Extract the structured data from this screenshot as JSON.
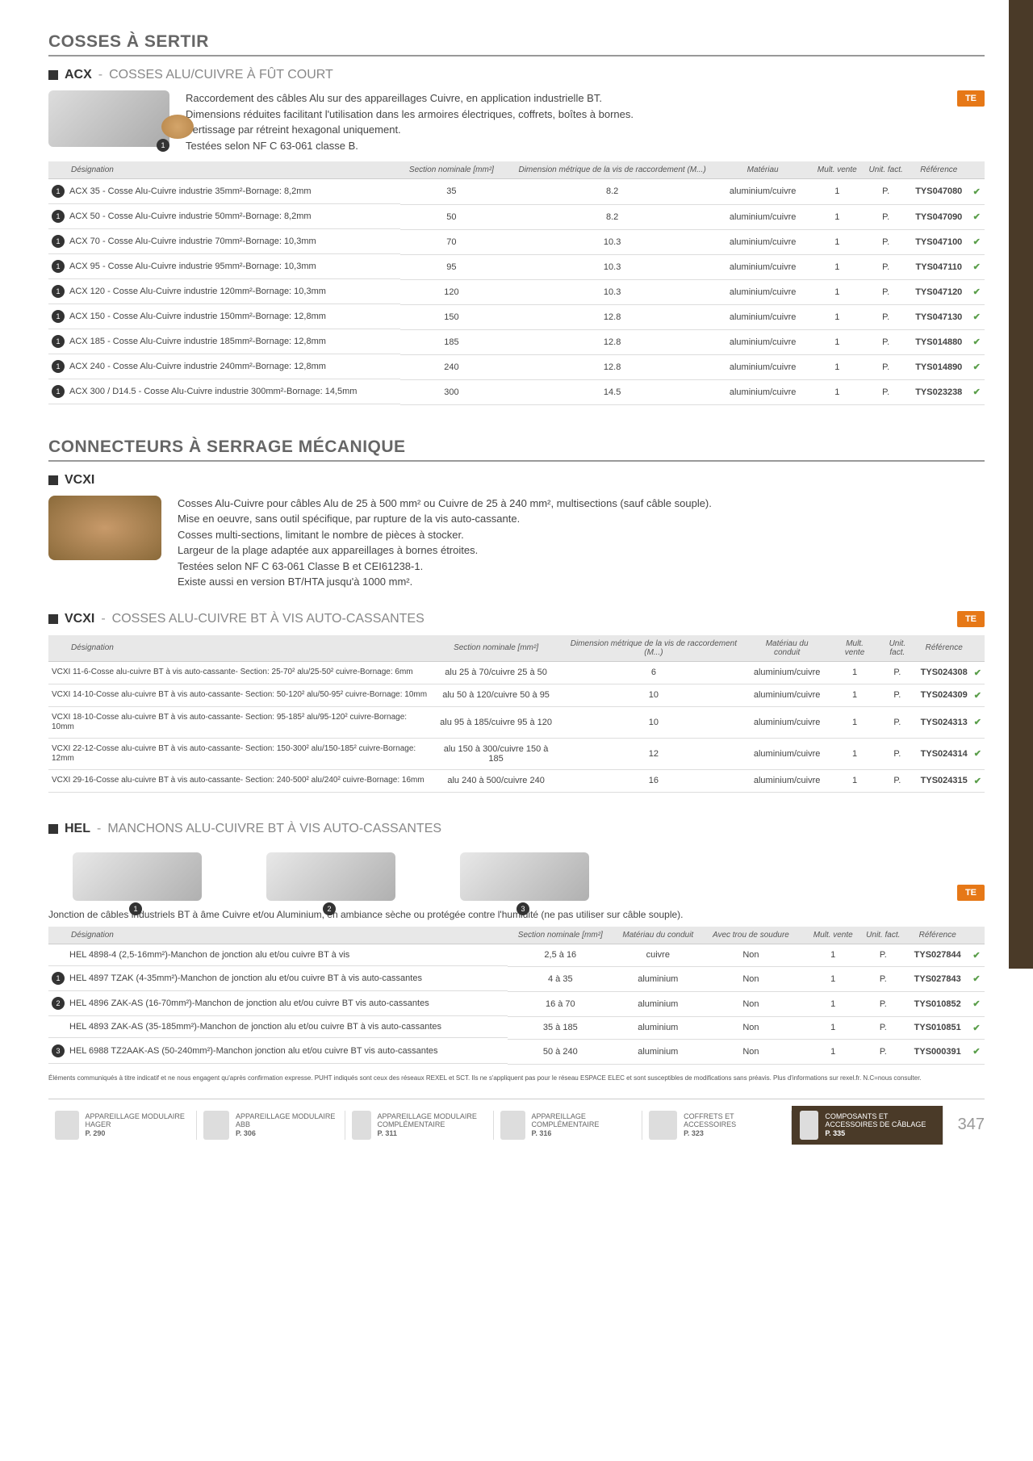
{
  "page_number": "347",
  "section1": {
    "category": "COSSES À SERTIR",
    "code": "ACX",
    "title": "COSSES ALU/CUIVRE À FÛT COURT",
    "desc": "Raccordement des câbles Alu sur des appareillages Cuivre, en application industrielle BT.\nDimensions réduites facilitant l'utilisation dans les armoires électriques, coffrets, boîtes à bornes.\nSertissage par rétreint hexagonal uniquement.\nTestées selon NF C 63-061 classe B.",
    "brand": "TE",
    "headers": [
      "Désignation",
      "Section nominale [mm²]",
      "Dimension métrique de la vis de raccordement (M...)",
      "Matériau",
      "",
      "Mult. vente",
      "Unit. fact.",
      "Référence",
      ""
    ],
    "rows": [
      {
        "badge": "1",
        "d": "ACX 35 - Cosse Alu-Cuivre industrie 35mm²-Bornage: 8,2mm",
        "s": "35",
        "v": "8.2",
        "m": "aluminium/cuivre",
        "mv": "1",
        "u": "P.",
        "r": "TYS047080"
      },
      {
        "badge": "1",
        "d": "ACX 50 - Cosse Alu-Cuivre industrie 50mm²-Bornage: 8,2mm",
        "s": "50",
        "v": "8.2",
        "m": "aluminium/cuivre",
        "mv": "1",
        "u": "P.",
        "r": "TYS047090"
      },
      {
        "badge": "1",
        "d": "ACX 70 - Cosse Alu-Cuivre industrie 70mm²-Bornage: 10,3mm",
        "s": "70",
        "v": "10.3",
        "m": "aluminium/cuivre",
        "mv": "1",
        "u": "P.",
        "r": "TYS047100"
      },
      {
        "badge": "1",
        "d": "ACX 95 - Cosse Alu-Cuivre industrie 95mm²-Bornage: 10,3mm",
        "s": "95",
        "v": "10.3",
        "m": "aluminium/cuivre",
        "mv": "1",
        "u": "P.",
        "r": "TYS047110"
      },
      {
        "badge": "1",
        "d": "ACX 120 - Cosse Alu-Cuivre industrie 120mm²-Bornage: 10,3mm",
        "s": "120",
        "v": "10.3",
        "m": "aluminium/cuivre",
        "mv": "1",
        "u": "P.",
        "r": "TYS047120"
      },
      {
        "badge": "1",
        "d": "ACX 150 - Cosse Alu-Cuivre industrie 150mm²-Bornage: 12,8mm",
        "s": "150",
        "v": "12.8",
        "m": "aluminium/cuivre",
        "mv": "1",
        "u": "P.",
        "r": "TYS047130"
      },
      {
        "badge": "1",
        "d": "ACX 185 - Cosse Alu-Cuivre industrie 185mm²-Bornage: 12,8mm",
        "s": "185",
        "v": "12.8",
        "m": "aluminium/cuivre",
        "mv": "1",
        "u": "P.",
        "r": "TYS014880"
      },
      {
        "badge": "1",
        "d": "ACX 240 - Cosse Alu-Cuivre industrie 240mm²-Bornage: 12,8mm",
        "s": "240",
        "v": "12.8",
        "m": "aluminium/cuivre",
        "mv": "1",
        "u": "P.",
        "r": "TYS014890"
      },
      {
        "badge": "1",
        "d": "ACX 300 / D14.5 - Cosse Alu-Cuivre industrie 300mm²-Bornage: 14,5mm",
        "s": "300",
        "v": "14.5",
        "m": "aluminium/cuivre",
        "mv": "1",
        "u": "P.",
        "r": "TYS023238"
      }
    ]
  },
  "section2": {
    "category": "CONNECTEURS À SERRAGE MÉCANIQUE",
    "code": "VCXI",
    "desc": "Cosses Alu-Cuivre pour câbles Alu de 25 à 500 mm² ou Cuivre de 25 à 240 mm², multisections (sauf câble souple).\nMise en oeuvre, sans outil spécifique, par rupture de la vis auto-cassante.\nCosses multi-sections, limitant le nombre de pièces à stocker.\nLargeur de la plage adaptée aux appareillages à bornes étroites.\nTestées selon NF C 63-061 Classe B et CEI61238-1.\nExiste aussi en version BT/HTA jusqu'à 1000 mm²."
  },
  "section3": {
    "code": "VCXI",
    "title": "COSSES ALU-CUIVRE BT À VIS AUTO-CASSANTES",
    "brand": "TE",
    "headers": [
      "Désignation",
      "Section nominale [mm²]",
      "Dimension métrique de la vis de raccordement (M...)",
      "Matériau du conduit",
      "",
      "Mult. vente",
      "Unit. fact.",
      "Référence",
      ""
    ],
    "rows": [
      {
        "d": "VCXI 11-6-Cosse alu-cuivre BT à vis auto-cassante- Section: 25-70² alu/25-50² cuivre-Bornage: 6mm",
        "s": "alu 25 à 70/cuivre 25 à 50",
        "v": "6",
        "m": "aluminium/cuivre",
        "mv": "1",
        "u": "P.",
        "r": "TYS024308"
      },
      {
        "d": "VCXI 14-10-Cosse alu-cuivre BT à vis auto-cassante- Section: 50-120² alu/50-95² cuivre-Bornage: 10mm",
        "s": "alu 50 à 120/cuivre 50 à 95",
        "v": "10",
        "m": "aluminium/cuivre",
        "mv": "1",
        "u": "P.",
        "r": "TYS024309"
      },
      {
        "d": "VCXI 18-10-Cosse alu-cuivre BT à vis auto-cassante- Section: 95-185² alu/95-120² cuivre-Bornage: 10mm",
        "s": "alu 95 à 185/cuivre 95 à 120",
        "v": "10",
        "m": "aluminium/cuivre",
        "mv": "1",
        "u": "P.",
        "r": "TYS024313"
      },
      {
        "d": "VCXI 22-12-Cosse alu-cuivre BT à vis auto-cassante- Section: 150-300² alu/150-185² cuivre-Bornage: 12mm",
        "s": "alu 150 à 300/cuivre 150 à 185",
        "v": "12",
        "m": "aluminium/cuivre",
        "mv": "1",
        "u": "P.",
        "r": "TYS024314"
      },
      {
        "d": "VCXI 29-16-Cosse alu-cuivre BT à vis auto-cassante- Section: 240-500² alu/240² cuivre-Bornage: 16mm",
        "s": "alu 240 à 500/cuivre 240",
        "v": "16",
        "m": "aluminium/cuivre",
        "mv": "1",
        "u": "P.",
        "r": "TYS024315"
      }
    ]
  },
  "section4": {
    "code": "HEL",
    "title": "MANCHONS ALU-CUIVRE BT À VIS AUTO-CASSANTES",
    "brand": "TE",
    "note": "Jonction de câbles industriels BT à âme Cuivre et/ou Aluminium, en ambiance sèche ou protégée contre l'humidité (ne pas utiliser sur câble souple).",
    "headers": [
      "Désignation",
      "Section nominale [mm²]",
      "Matériau du conduit",
      "Avec trou de soudure",
      "",
      "Mult. vente",
      "Unit. fact.",
      "Référence",
      ""
    ],
    "rows": [
      {
        "badge": "",
        "d": "HEL 4898-4 (2,5-16mm²)-Manchon de jonction alu et/ou cuivre BT à vis",
        "s": "2,5 à 16",
        "m": "cuivre",
        "t": "Non",
        "mv": "1",
        "u": "P.",
        "r": "TYS027844"
      },
      {
        "badge": "1",
        "d": "HEL 4897 TZAK (4-35mm²)-Manchon de jonction alu et/ou cuivre BT à vis auto-cassantes",
        "s": "4 à 35",
        "m": "aluminium",
        "t": "Non",
        "mv": "1",
        "u": "P.",
        "r": "TYS027843"
      },
      {
        "badge": "2",
        "d": "HEL 4896 ZAK-AS (16-70mm²)-Manchon de jonction alu et/ou cuivre BT vis auto-cassantes",
        "s": "16 à 70",
        "m": "aluminium",
        "t": "Non",
        "mv": "1",
        "u": "P.",
        "r": "TYS010852"
      },
      {
        "badge": "",
        "d": "HEL 4893 ZAK-AS (35-185mm²)-Manchon de jonction alu et/ou cuivre BT à vis auto-cassantes",
        "s": "35 à 185",
        "m": "aluminium",
        "t": "Non",
        "mv": "1",
        "u": "P.",
        "r": "TYS010851"
      },
      {
        "badge": "3",
        "d": "HEL 6988 TZ2AAK-AS (50-240mm²)-Manchon jonction alu et/ou cuivre BT vis auto-cassantes",
        "s": "50 à 240",
        "m": "aluminium",
        "t": "Non",
        "mv": "1",
        "u": "P.",
        "r": "TYS000391"
      }
    ]
  },
  "disclaimer": "Éléments communiqués à titre indicatif et ne nous engagent qu'après confirmation expresse. PUHT indiqués sont ceux des réseaux REXEL et SCT. Ils ne s'appliquent pas pour le réseau ESPACE ELEC et sont susceptibles de modifications sans préavis. Plus d'informations sur rexel.fr. N.C=nous consulter.",
  "footer": [
    {
      "t": "APPAREILLAGE MODULAIRE HAGER",
      "p": "P. 290"
    },
    {
      "t": "APPAREILLAGE MODULAIRE ABB",
      "p": "P. 306"
    },
    {
      "t": "APPAREILLAGE MODULAIRE COMPLÉMENTAIRE",
      "p": "P. 311"
    },
    {
      "t": "APPAREILLAGE COMPLÉMENTAIRE",
      "p": "P. 316"
    },
    {
      "t": "COFFRETS ET ACCESSOIRES",
      "p": "P. 323"
    },
    {
      "t": "COMPOSANTS ET ACCESSOIRES DE CÂBLAGE",
      "p": "P. 335",
      "dark": true
    }
  ]
}
